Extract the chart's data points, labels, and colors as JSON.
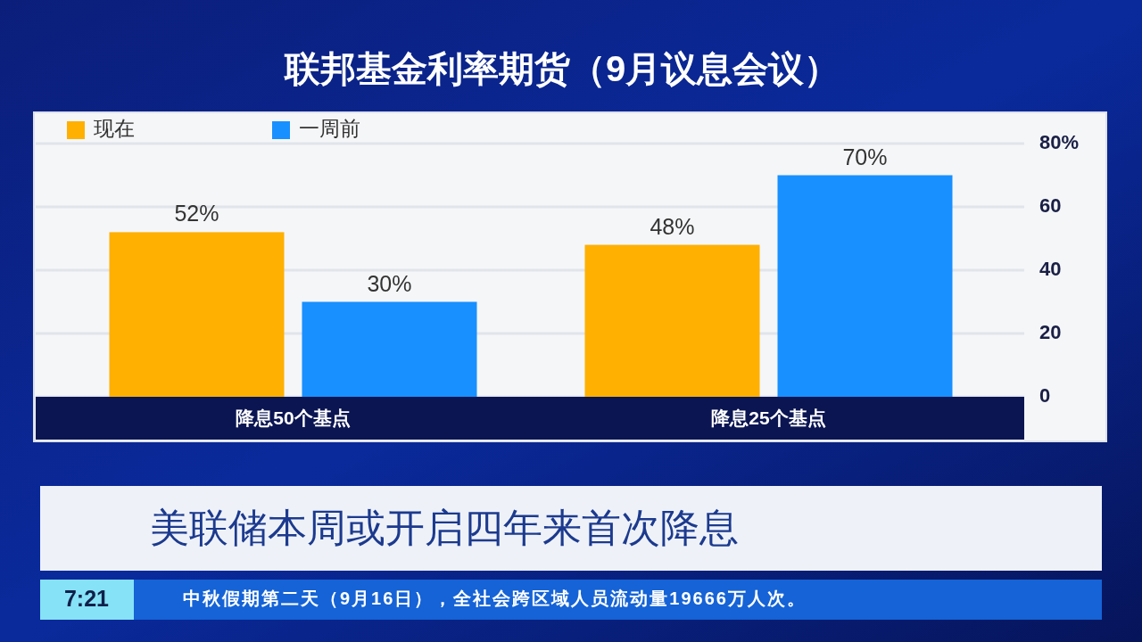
{
  "chart_data": {
    "type": "bar",
    "title": "联邦基金利率期货（9月议息会议）",
    "categories": [
      "降息50个基点",
      "降息25个基点"
    ],
    "series": [
      {
        "name": "现在",
        "color": "#ffb000",
        "values": [
          52,
          48
        ],
        "value_labels": [
          "52%",
          "48%"
        ]
      },
      {
        "name": "一周前",
        "color": "#1890ff",
        "values": [
          30,
          70
        ],
        "value_labels": [
          "30%",
          "70%"
        ]
      }
    ],
    "ylim": [
      0,
      80
    ],
    "yticks": [
      0,
      20,
      40,
      60,
      {
        "value": 80,
        "label": "80%"
      }
    ],
    "grid": "y",
    "legend": "top left",
    "annotations": [
      "美联储本周或开启四年来首次降息",
      "7:21",
      "中秋假期第二天（9月16日），全社会跨区域人员流动量19666万人次。"
    ]
  }
}
